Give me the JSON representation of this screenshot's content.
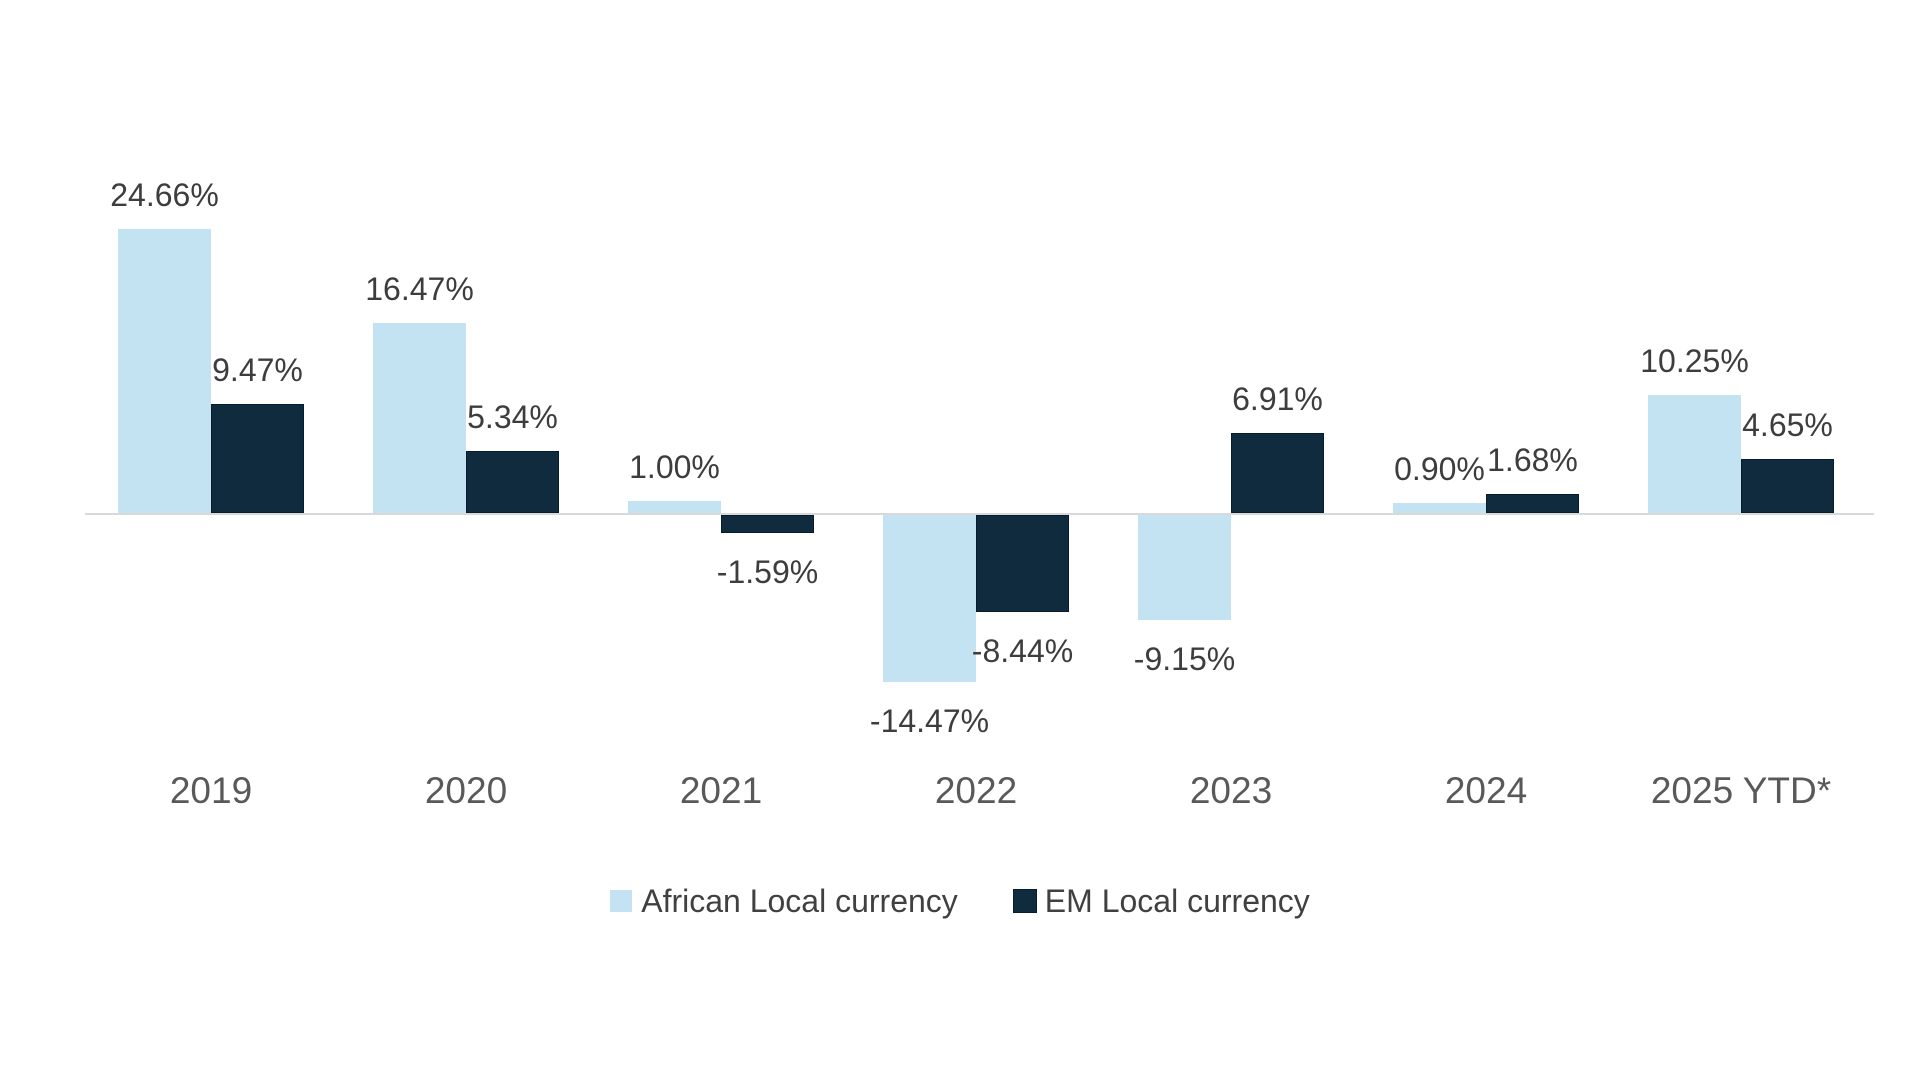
{
  "chart_data": {
    "type": "bar",
    "title": "",
    "xlabel": "",
    "ylabel": "",
    "categories": [
      "2019",
      "2020",
      "2021",
      "2022",
      "2023",
      "2024",
      "2025 YTD*"
    ],
    "series": [
      {
        "name": "African Local currency",
        "color": "#c3e3f3",
        "values": [
          24.66,
          16.47,
          1.0,
          -14.47,
          -9.15,
          0.9,
          10.25
        ]
      },
      {
        "name": "EM Local currency",
        "color": "#0f2b3d",
        "border_color": "#081d2b",
        "values": [
          9.47,
          5.34,
          -1.59,
          -8.44,
          6.91,
          1.68,
          4.65
        ]
      }
    ],
    "data_label_suffix": "%",
    "data_label_decimals": 2,
    "data_label_color": "#3d3d3d",
    "category_label_color": "#595959",
    "axis_line_color": "#d9d9d9",
    "background": "#ffffff",
    "ylim": [
      -16,
      26
    ],
    "gridlines": false,
    "legend_position": "bottom"
  }
}
